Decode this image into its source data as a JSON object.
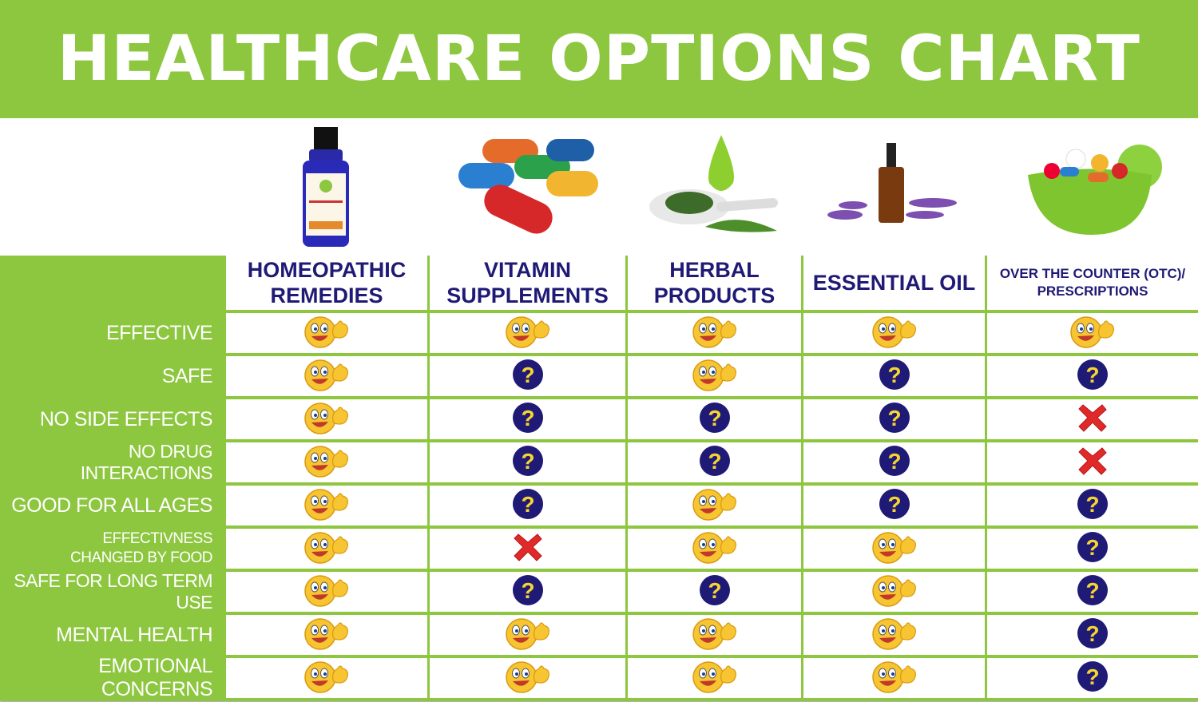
{
  "title": "HEALTHCARE OPTIONS CHART",
  "columns": [
    {
      "label_line1": "HOMEOPATHIC",
      "label_line2": "REMEDIES",
      "image": "homeopathic-bottle"
    },
    {
      "label_line1": "VITAMIN",
      "label_line2": "SUPPLEMENTS",
      "image": "vitamin-capsules"
    },
    {
      "label_line1": "HERBAL",
      "label_line2": "PRODUCTS",
      "image": "herbal-leaves-spoon"
    },
    {
      "label_line1": "ESSENTIAL OIL",
      "label_line2": "",
      "image": "essential-oil-lavender"
    },
    {
      "label_line1": "OVER THE COUNTER (OTC)/",
      "label_line2": "PRESCRIPTIONS",
      "image": "pills-bowl"
    }
  ],
  "legend_icons": {
    "yes": "thumbs-up-smiley",
    "unknown": "question-mark",
    "no": "red-x"
  },
  "colors": {
    "green": "#8dc63f",
    "navy": "#1f1a75",
    "red": "#e02a2a",
    "yellow": "#f7c531"
  },
  "rows": [
    {
      "label": "EFFECTIVE",
      "values": [
        "yes",
        "yes",
        "yes",
        "yes",
        "yes"
      ]
    },
    {
      "label": "SAFE",
      "values": [
        "yes",
        "unknown",
        "yes",
        "unknown",
        "unknown"
      ]
    },
    {
      "label": "NO SIDE EFFECTS",
      "values": [
        "yes",
        "unknown",
        "unknown",
        "unknown",
        "no"
      ]
    },
    {
      "label": "NO DRUG INTERACTIONS",
      "values": [
        "yes",
        "unknown",
        "unknown",
        "unknown",
        "no"
      ]
    },
    {
      "label": "GOOD FOR ALL AGES",
      "values": [
        "yes",
        "unknown",
        "yes",
        "unknown",
        "unknown"
      ]
    },
    {
      "label": "EFFECTIVNESS CHANGED BY FOOD",
      "values": [
        "yes",
        "no",
        "yes",
        "yes",
        "unknown"
      ]
    },
    {
      "label": "SAFE FOR LONG TERM USE",
      "values": [
        "yes",
        "unknown",
        "unknown",
        "yes",
        "unknown"
      ]
    },
    {
      "label": "MENTAL HEALTH",
      "values": [
        "yes",
        "yes",
        "yes",
        "yes",
        "unknown"
      ]
    },
    {
      "label": "EMOTIONAL CONCERNS",
      "values": [
        "yes",
        "yes",
        "yes",
        "yes",
        "unknown"
      ]
    }
  ]
}
